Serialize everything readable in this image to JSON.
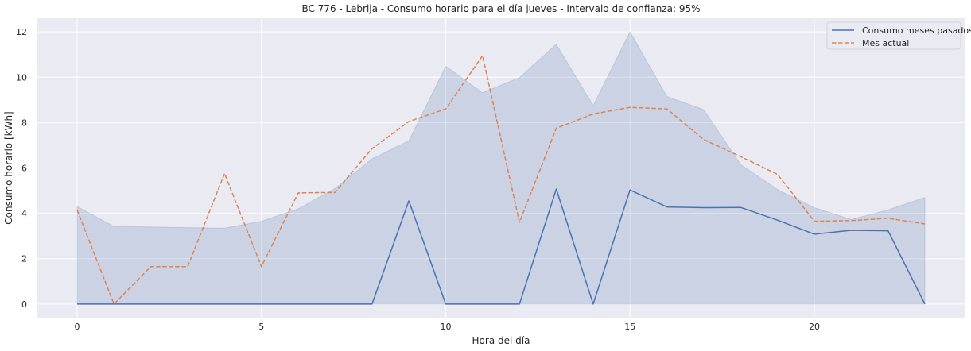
{
  "chart_data": {
    "type": "line",
    "title": "BC 776 - Lebrija - Consumo horario para el día jueves - Intervalo de confianza: 95%",
    "xlabel": "Hora del día",
    "ylabel": "Consumo horario [kWh]",
    "xlim": [
      -1.1,
      24.1
    ],
    "ylim": [
      -0.6,
      12.6
    ],
    "xticks": [
      0,
      5,
      10,
      15,
      20
    ],
    "yticks": [
      0,
      2,
      4,
      6,
      8,
      10,
      12
    ],
    "grid": true,
    "legend_position": "top-right",
    "x": [
      0,
      1,
      2,
      3,
      4,
      5,
      6,
      7,
      8,
      9,
      10,
      11,
      12,
      13,
      14,
      15,
      16,
      17,
      18,
      19,
      20,
      21,
      22,
      23
    ],
    "series": [
      {
        "name": "Consumo meses pasados",
        "style": "solid",
        "color": "#4c72b0",
        "values": [
          0,
          0,
          0,
          0,
          0,
          0,
          0,
          0,
          0,
          4.55,
          0,
          0,
          0,
          5.07,
          0,
          5.03,
          4.28,
          4.25,
          4.26,
          3.7,
          3.08,
          3.25,
          3.23,
          0
        ],
        "ci_upper": [
          4.3,
          3.42,
          3.4,
          3.37,
          3.35,
          3.65,
          4.2,
          5.1,
          6.4,
          7.2,
          10.48,
          9.32,
          9.98,
          11.45,
          8.75,
          12.0,
          9.15,
          8.57,
          6.15,
          5.05,
          4.25,
          3.73,
          4.15,
          4.7
        ],
        "ci_lower": [
          0,
          0,
          0,
          0,
          0,
          0,
          0,
          0,
          0,
          0,
          0,
          0,
          0,
          0,
          0,
          0,
          0,
          0,
          0,
          0,
          0,
          0,
          0,
          0
        ]
      },
      {
        "name": "Mes actual",
        "style": "dashed",
        "color": "#dd8452",
        "values": [
          4.15,
          0,
          1.65,
          1.65,
          5.75,
          1.65,
          4.9,
          4.92,
          6.85,
          8.05,
          8.6,
          10.95,
          3.6,
          7.75,
          8.38,
          8.67,
          8.6,
          7.25,
          6.5,
          5.72,
          3.65,
          3.68,
          3.78,
          3.53
        ]
      }
    ]
  }
}
